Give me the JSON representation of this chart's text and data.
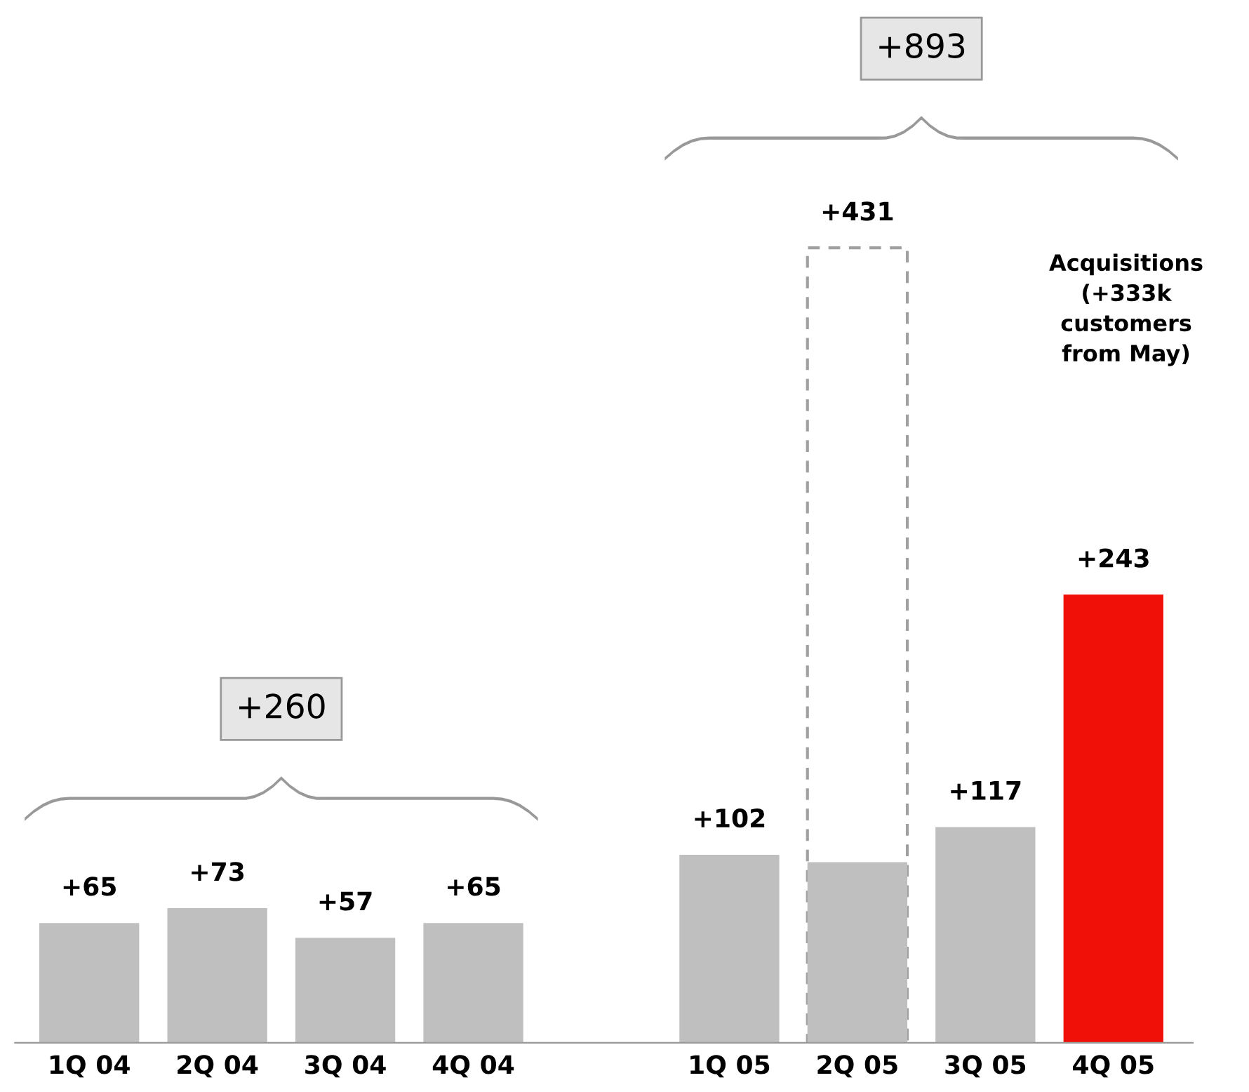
{
  "chart_data": {
    "type": "bar",
    "categories": [
      "1Q 04",
      "2Q 04",
      "3Q 04",
      "4Q 04",
      null,
      "1Q 05",
      "2Q 05",
      "3Q 05",
      "4Q 05"
    ],
    "series": [
      {
        "color": "#a0a0a0",
        "line_style": "dashed",
        "values": [
          null,
          null,
          null,
          null,
          null,
          null,
          431,
          null,
          null
        ],
        "value_labels": [
          null,
          null,
          null,
          null,
          null,
          null,
          "+431",
          null,
          null
        ]
      },
      {
        "colors": [
          "#bfbfbf",
          "#bfbfbf",
          "#bfbfbf",
          "#bfbfbf",
          "#bfbfbf",
          "#bfbfbf",
          "#bfbfbf",
          "#bfbfbf",
          "#f01008"
        ],
        "values": [
          65,
          73,
          57,
          65,
          null,
          102,
          98,
          117,
          243
        ],
        "value_labels": [
          "+65",
          "+73",
          "+57",
          "+65",
          null,
          "+102",
          null,
          "+117",
          "+243"
        ]
      }
    ],
    "annotations": [
      "+260",
      "+893",
      "Acquisitions\n(+333k\ncustomers\nfrom May)"
    ],
    "grid": false,
    "legend": false
  }
}
